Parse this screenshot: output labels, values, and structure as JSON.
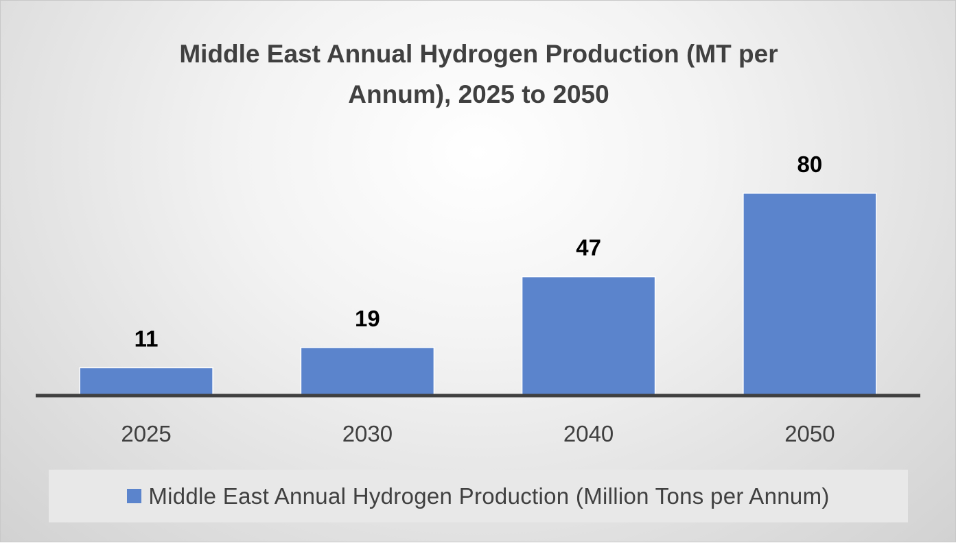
{
  "colors": {
    "bar": "#5b84cc",
    "axis": "#404040"
  },
  "chart_data": {
    "type": "bar",
    "title_lines": [
      "Middle East Annual Hydrogen Production (MT per",
      "Annum), 2025 to 2050"
    ],
    "categories": [
      "2025",
      "2030",
      "2040",
      "2050"
    ],
    "series": [
      {
        "name": "Middle East Annual Hydrogen Production (Million Tons per Annum)",
        "values": [
          11,
          19,
          47,
          80
        ]
      }
    ],
    "data_labels": [
      "11",
      "19",
      "47",
      "80"
    ],
    "ylim": [
      0,
      80
    ],
    "grid": false,
    "legend_position": "bottom"
  }
}
